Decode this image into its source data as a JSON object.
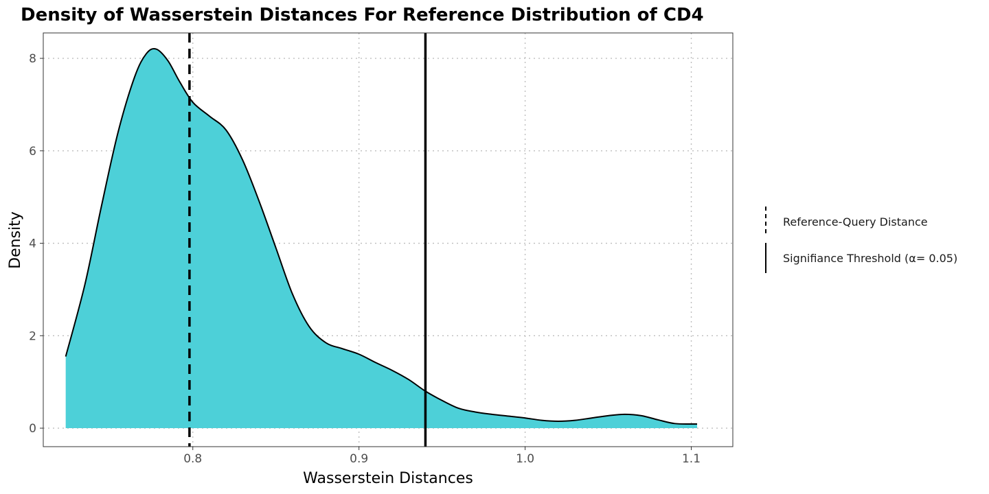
{
  "chart_data": {
    "type": "area",
    "title": "Density of Wasserstein Distances For Reference Distribution of CD4",
    "xlabel": "Wasserstein Distances",
    "ylabel": "Density",
    "xlim": [
      0.71,
      1.125
    ],
    "ylim": [
      -0.4,
      8.55
    ],
    "x_ticks": [
      0.8,
      0.9,
      1.0,
      1.1
    ],
    "x_tick_labels": [
      "0.8",
      "0.9",
      "1.0",
      "1.1"
    ],
    "y_ticks": [
      0,
      2,
      4,
      6,
      8
    ],
    "y_tick_labels": [
      "0",
      "2",
      "4",
      "6",
      "8"
    ],
    "grid": true,
    "grid_style": "dotted",
    "fill_color": "#4dd0d8",
    "line_color": "#000000",
    "legend_position": "right",
    "density": {
      "x": [
        0.7235,
        0.735,
        0.745,
        0.755,
        0.765,
        0.772,
        0.778,
        0.785,
        0.792,
        0.8,
        0.81,
        0.82,
        0.83,
        0.84,
        0.85,
        0.86,
        0.87,
        0.88,
        0.89,
        0.9,
        0.91,
        0.92,
        0.93,
        0.94,
        0.95,
        0.96,
        0.97,
        0.98,
        0.99,
        1.0,
        1.01,
        1.02,
        1.03,
        1.04,
        1.05,
        1.06,
        1.07,
        1.08,
        1.09,
        1.1,
        1.1035
      ],
      "y": [
        1.55,
        3.1,
        4.8,
        6.4,
        7.6,
        8.1,
        8.2,
        7.95,
        7.5,
        7.05,
        6.75,
        6.45,
        5.8,
        4.9,
        3.9,
        2.9,
        2.2,
        1.85,
        1.72,
        1.6,
        1.42,
        1.25,
        1.05,
        0.8,
        0.6,
        0.43,
        0.35,
        0.3,
        0.26,
        0.22,
        0.17,
        0.15,
        0.17,
        0.22,
        0.27,
        0.3,
        0.27,
        0.18,
        0.1,
        0.09,
        0.09
      ]
    },
    "vlines": [
      {
        "name": "Reference-Query Distance",
        "x": 0.798,
        "style": "dashed"
      },
      {
        "name": "Signifiance Threshold (α= 0.05)",
        "x": 0.94,
        "style": "solid"
      }
    ],
    "legend": [
      {
        "label": "Reference-Query Distance",
        "style": "dashed"
      },
      {
        "label": "Signifiance Threshold (α= 0.05)",
        "style": "solid"
      }
    ]
  }
}
